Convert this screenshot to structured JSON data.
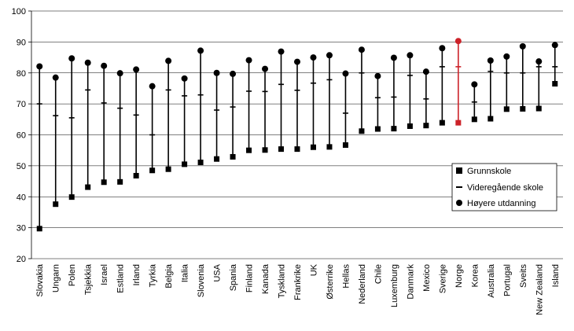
{
  "chart_data": {
    "type": "range",
    "title": "",
    "xlabel": "",
    "ylabel": "",
    "ylim": [
      20,
      100
    ],
    "yticks": [
      20,
      30,
      40,
      50,
      60,
      70,
      80,
      90,
      100
    ],
    "grid": "horizontal",
    "legend_position": "right",
    "categories": [
      "Slovakia",
      "Ungarn",
      "Polen",
      "Tsjekkia",
      "Israel",
      "Estland",
      "Irland",
      "Tyrkia",
      "Belgia",
      "Italia",
      "Slovenia",
      "USA",
      "Spania",
      "Finland",
      "Kanada",
      "Tyskland",
      "Frankrike",
      "UK",
      "Østerrike",
      "Hellas",
      "Nederland",
      "Chile",
      "Luxemburg",
      "Danmark",
      "Mexico",
      "Sverige",
      "Norge",
      "Korea",
      "Australia",
      "Portugal",
      "Sveits",
      "New Zealand",
      "Island"
    ],
    "highlight_category": "Norge",
    "series": [
      {
        "name": "Grunnskole",
        "marker": "square",
        "values": [
          29.7,
          37.6,
          39.9,
          43.1,
          44.7,
          44.8,
          46.8,
          48.5,
          48.9,
          50.5,
          51.1,
          52.2,
          52.9,
          55.0,
          55.1,
          55.4,
          55.4,
          56.0,
          56.1,
          56.7,
          61.2,
          61.9,
          62.0,
          62.8,
          63.0,
          63.9,
          63.9,
          65.0,
          65.2,
          68.3,
          68.4,
          68.5,
          76.5
        ]
      },
      {
        "name": "Videregående skole",
        "marker": "dash",
        "values": [
          70.0,
          66.2,
          65.5,
          74.5,
          70.3,
          68.6,
          66.4,
          60.0,
          74.5,
          72.6,
          72.9,
          68.0,
          69.0,
          74.1,
          74.0,
          76.3,
          74.4,
          76.7,
          77.8,
          67.0,
          80.0,
          72.0,
          72.2,
          79.2,
          71.6,
          82.0,
          82.0,
          70.6,
          80.5,
          80.0,
          80.0,
          82.0,
          82.0
        ]
      },
      {
        "name": "Høyere utdanning",
        "marker": "circle",
        "values": [
          82.1,
          78.5,
          84.7,
          83.3,
          82.3,
          79.9,
          81.1,
          75.7,
          83.9,
          78.2,
          87.2,
          80.0,
          79.7,
          84.1,
          81.3,
          86.9,
          83.6,
          85.0,
          85.7,
          79.8,
          87.5,
          79.0,
          84.9,
          85.7,
          80.4,
          88.0,
          90.3,
          76.3,
          84.0,
          85.3,
          88.6,
          83.7,
          89.0
        ]
      }
    ],
    "colors": {
      "default": "#000000",
      "highlight": "#cc2229",
      "grid": "#000000"
    }
  }
}
